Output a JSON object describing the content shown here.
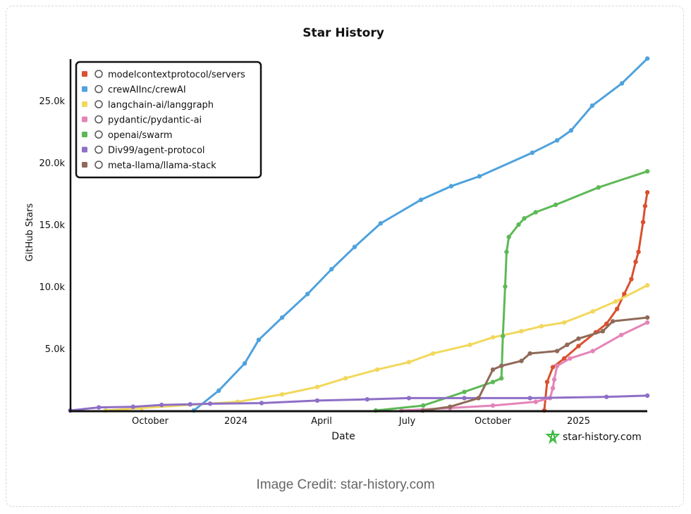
{
  "caption": "Image Credit: star-history.com",
  "watermark": "star-history.com",
  "chart_data": {
    "type": "line",
    "title": "Star History",
    "xlabel": "Date",
    "ylabel": "GitHub Stars",
    "x_unit": "months since Jan 2023",
    "xlim": [
      6.2,
      26.5
    ],
    "ylim": [
      0,
      28.6
    ],
    "x_ticks": [
      {
        "v": 9,
        "label": "October"
      },
      {
        "v": 12,
        "label": "2024"
      },
      {
        "v": 15,
        "label": "April"
      },
      {
        "v": 18,
        "label": "July"
      },
      {
        "v": 21,
        "label": "October"
      },
      {
        "v": 24,
        "label": "2025"
      }
    ],
    "y_ticks": [
      {
        "v": 5,
        "label": "5.0k"
      },
      {
        "v": 10,
        "label": "10.0k"
      },
      {
        "v": 15,
        "label": "15.0k"
      },
      {
        "v": 20,
        "label": "20.0k"
      },
      {
        "v": 25,
        "label": "25.0k"
      }
    ],
    "legend_position": "top-left",
    "series": [
      {
        "name": "modelcontextprotocol/servers",
        "color": "#d9512f",
        "icon": "mcp-icon",
        "x": [
          22.8,
          22.9,
          23.1,
          23.5,
          24.0,
          24.6,
          24.98,
          25.35,
          25.6,
          25.85,
          26.0,
          26.1,
          26.26,
          26.33,
          26.41
        ],
        "y": [
          0,
          2.3,
          3.5,
          4.2,
          5.2,
          6.3,
          7.0,
          8.2,
          9.4,
          10.6,
          12.0,
          12.8,
          15.2,
          16.5,
          17.6
        ]
      },
      {
        "name": "crewAIInc/crewAI",
        "color": "#4fa2dd",
        "icon": "crewai-icon",
        "x": [
          10.53,
          11.4,
          12.31,
          12.8,
          13.62,
          14.51,
          15.35,
          16.16,
          17.07,
          18.48,
          19.54,
          20.53,
          22.38,
          23.25,
          23.74,
          24.48,
          25.52,
          26.41
        ],
        "y": [
          0,
          1.6,
          3.8,
          5.7,
          7.5,
          9.4,
          11.4,
          13.2,
          15.1,
          17.0,
          18.1,
          18.9,
          20.8,
          21.8,
          22.6,
          24.6,
          26.4,
          28.4
        ]
      },
      {
        "name": "langchain-ai/langgraph",
        "color": "#f2d85c",
        "icon": "langgraph-icon",
        "x": [
          7.44,
          8.7,
          12.06,
          13.62,
          14.85,
          15.84,
          16.95,
          18.06,
          18.9,
          20.2,
          21.0,
          22.0,
          22.7,
          23.5,
          24.5,
          25.3,
          26.41
        ],
        "y": [
          0,
          0.2,
          0.7,
          1.3,
          1.9,
          2.6,
          3.3,
          3.9,
          4.6,
          5.3,
          5.9,
          6.4,
          6.8,
          7.1,
          8.0,
          8.8,
          10.1
        ]
      },
      {
        "name": "pydantic/pydantic-ai",
        "color": "#e484b8",
        "icon": "pydantic-icon",
        "x": [
          17.8,
          19.5,
          21.0,
          22.5,
          23.0,
          23.1,
          23.15,
          23.25,
          23.7,
          24.5,
          25.5,
          26.41
        ],
        "y": [
          0,
          0.2,
          0.4,
          0.7,
          1.0,
          1.8,
          2.5,
          3.6,
          4.2,
          4.8,
          6.1,
          7.1
        ]
      },
      {
        "name": "openai/swarm",
        "color": "#5db956",
        "icon": "openai-icon",
        "x": [
          16.9,
          18.56,
          20.0,
          21.0,
          21.3,
          21.35,
          21.43,
          21.48,
          21.56,
          21.9,
          22.1,
          22.5,
          23.2,
          24.7,
          26.41
        ],
        "y": [
          0,
          0.4,
          1.5,
          2.3,
          2.6,
          6.0,
          10.0,
          12.8,
          14.0,
          15.0,
          15.5,
          16.0,
          16.6,
          18.0,
          19.3
        ]
      },
      {
        "name": "Div99/agent-protocol",
        "color": "#8e6fc6",
        "icon": "div99-avatar-icon",
        "x": [
          6.2,
          7.2,
          8.4,
          9.4,
          10.4,
          11.1,
          12.9,
          14.85,
          16.6,
          18.06,
          20.0,
          22.3,
          24.98,
          26.41
        ],
        "y": [
          0,
          0.25,
          0.3,
          0.45,
          0.5,
          0.55,
          0.6,
          0.8,
          0.9,
          1.0,
          1.0,
          1.0,
          1.1,
          1.2
        ]
      },
      {
        "name": "meta-llama/llama-stack",
        "color": "#8f6a58",
        "icon": "meta-icon",
        "x": [
          18.55,
          19.5,
          20.5,
          21.0,
          21.3,
          22.0,
          22.3,
          23.25,
          23.6,
          24.0,
          24.85,
          25.2,
          26.41
        ],
        "y": [
          0,
          0.3,
          1.0,
          3.3,
          3.6,
          4.0,
          4.6,
          4.8,
          5.3,
          5.8,
          6.4,
          7.2,
          7.5
        ]
      }
    ]
  }
}
